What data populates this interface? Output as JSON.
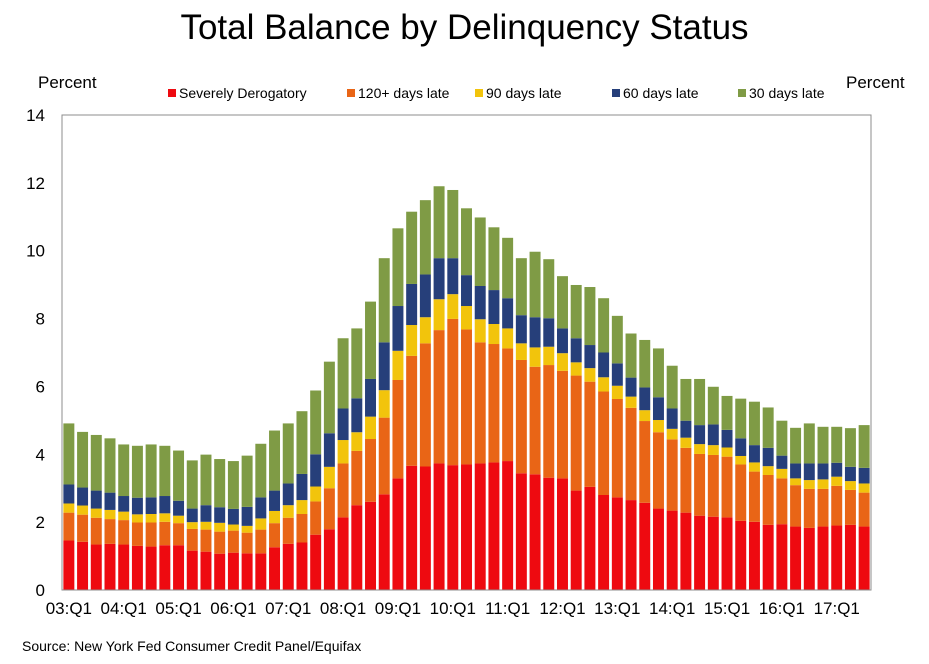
{
  "chart_data": {
    "type": "bar",
    "stacked": true,
    "title": "Total Balance by Delinquency Status",
    "ylabel_left": "Percent",
    "ylabel_right": "Percent",
    "source": "Source: New York Fed Consumer Credit Panel/Equifax",
    "ylim": [
      0,
      14
    ],
    "yticks": [
      0,
      2,
      4,
      6,
      8,
      10,
      12,
      14
    ],
    "grid": false,
    "legend_position": "top",
    "xtick_labels": [
      "03:Q1",
      "04:Q1",
      "05:Q1",
      "06:Q1",
      "07:Q1",
      "08:Q1",
      "09:Q1",
      "10:Q1",
      "11:Q1",
      "12:Q1",
      "13:Q1",
      "14:Q1",
      "15:Q1",
      "16:Q1",
      "17:Q1"
    ],
    "categories": [
      "03:Q1",
      "03:Q2",
      "03:Q3",
      "03:Q4",
      "04:Q1",
      "04:Q2",
      "04:Q3",
      "04:Q4",
      "05:Q1",
      "05:Q2",
      "05:Q3",
      "05:Q4",
      "06:Q1",
      "06:Q2",
      "06:Q3",
      "06:Q4",
      "07:Q1",
      "07:Q2",
      "07:Q3",
      "07:Q4",
      "08:Q1",
      "08:Q2",
      "08:Q3",
      "08:Q4",
      "09:Q1",
      "09:Q2",
      "09:Q3",
      "09:Q4",
      "10:Q1",
      "10:Q2",
      "10:Q3",
      "10:Q4",
      "11:Q1",
      "11:Q2",
      "11:Q3",
      "11:Q4",
      "12:Q1",
      "12:Q2",
      "12:Q3",
      "12:Q4",
      "13:Q1",
      "13:Q2",
      "13:Q3",
      "13:Q4",
      "14:Q1",
      "14:Q2",
      "14:Q3",
      "14:Q4",
      "15:Q1",
      "15:Q2",
      "15:Q3",
      "15:Q4",
      "16:Q1",
      "16:Q2",
      "16:Q3",
      "16:Q4",
      "17:Q1",
      "17:Q2",
      "17:Q3"
    ],
    "series": [
      {
        "name": "Severely Derogatory",
        "color": "#EE0A10",
        "values": [
          1.46,
          1.42,
          1.34,
          1.36,
          1.34,
          1.3,
          1.28,
          1.32,
          1.32,
          1.16,
          1.13,
          1.07,
          1.1,
          1.08,
          1.08,
          1.26,
          1.36,
          1.4,
          1.63,
          1.79,
          2.14,
          2.5,
          2.6,
          2.82,
          3.29,
          3.66,
          3.64,
          3.73,
          3.68,
          3.7,
          3.73,
          3.76,
          3.8,
          3.44,
          3.41,
          3.31,
          3.29,
          2.93,
          3.04,
          2.8,
          2.73,
          2.65,
          2.57,
          2.4,
          2.34,
          2.28,
          2.19,
          2.16,
          2.14,
          2.04,
          2.01,
          1.92,
          1.94,
          1.87,
          1.83,
          1.87,
          1.9,
          1.92,
          1.87
        ]
      },
      {
        "name": "120+ days late",
        "color": "#E96516",
        "values": [
          0.82,
          0.8,
          0.79,
          0.73,
          0.72,
          0.69,
          0.71,
          0.69,
          0.65,
          0.64,
          0.65,
          0.65,
          0.65,
          0.61,
          0.7,
          0.71,
          0.77,
          0.84,
          0.98,
          1.21,
          1.59,
          1.6,
          1.85,
          2.26,
          2.9,
          3.24,
          3.63,
          3.93,
          4.31,
          3.98,
          3.57,
          3.49,
          3.32,
          3.34,
          3.17,
          3.32,
          3.17,
          3.39,
          3.1,
          3.05,
          2.9,
          2.72,
          2.41,
          2.25,
          2.1,
          1.91,
          1.82,
          1.82,
          1.79,
          1.66,
          1.48,
          1.47,
          1.35,
          1.22,
          1.15,
          1.11,
          1.17,
          1.03,
          1.0
        ]
      },
      {
        "name": "90 days late",
        "color": "#F2C40C",
        "values": [
          0.27,
          0.27,
          0.27,
          0.27,
          0.25,
          0.24,
          0.25,
          0.25,
          0.22,
          0.2,
          0.23,
          0.26,
          0.18,
          0.2,
          0.33,
          0.36,
          0.37,
          0.41,
          0.44,
          0.63,
          0.69,
          0.55,
          0.66,
          0.81,
          0.86,
          0.91,
          0.77,
          0.91,
          0.73,
          0.69,
          0.68,
          0.59,
          0.59,
          0.49,
          0.57,
          0.54,
          0.52,
          0.39,
          0.4,
          0.42,
          0.39,
          0.33,
          0.32,
          0.36,
          0.31,
          0.3,
          0.29,
          0.29,
          0.27,
          0.25,
          0.27,
          0.26,
          0.28,
          0.2,
          0.26,
          0.28,
          0.27,
          0.26,
          0.27
        ]
      },
      {
        "name": "60 days late",
        "color": "#263F7A",
        "values": [
          0.56,
          0.53,
          0.53,
          0.51,
          0.46,
          0.49,
          0.49,
          0.51,
          0.44,
          0.4,
          0.49,
          0.46,
          0.46,
          0.56,
          0.62,
          0.6,
          0.64,
          0.77,
          0.95,
          0.99,
          0.93,
          1.0,
          1.11,
          1.41,
          1.32,
          1.21,
          1.26,
          1.21,
          1.06,
          0.91,
          0.98,
          1.0,
          0.89,
          0.83,
          0.89,
          0.84,
          0.73,
          0.71,
          0.68,
          0.73,
          0.66,
          0.56,
          0.67,
          0.67,
          0.6,
          0.5,
          0.56,
          0.61,
          0.52,
          0.52,
          0.51,
          0.54,
          0.39,
          0.44,
          0.49,
          0.47,
          0.41,
          0.42,
          0.46
        ]
      },
      {
        "name": "30 days late",
        "color": "#7F9B45",
        "values": [
          1.8,
          1.64,
          1.64,
          1.6,
          1.52,
          1.53,
          1.56,
          1.48,
          1.48,
          1.42,
          1.49,
          1.42,
          1.41,
          1.51,
          1.58,
          1.77,
          1.77,
          1.85,
          1.88,
          2.11,
          2.07,
          2.06,
          2.28,
          2.48,
          2.29,
          2.13,
          2.19,
          2.12,
          2.01,
          1.97,
          2.02,
          1.85,
          1.78,
          1.68,
          1.93,
          1.74,
          1.54,
          1.57,
          1.71,
          1.6,
          1.4,
          1.3,
          1.4,
          1.44,
          1.26,
          1.23,
          1.36,
          1.11,
          1.0,
          1.17,
          1.28,
          1.19,
          1.03,
          1.05,
          1.18,
          1.08,
          1.06,
          1.14,
          1.26
        ]
      }
    ]
  }
}
